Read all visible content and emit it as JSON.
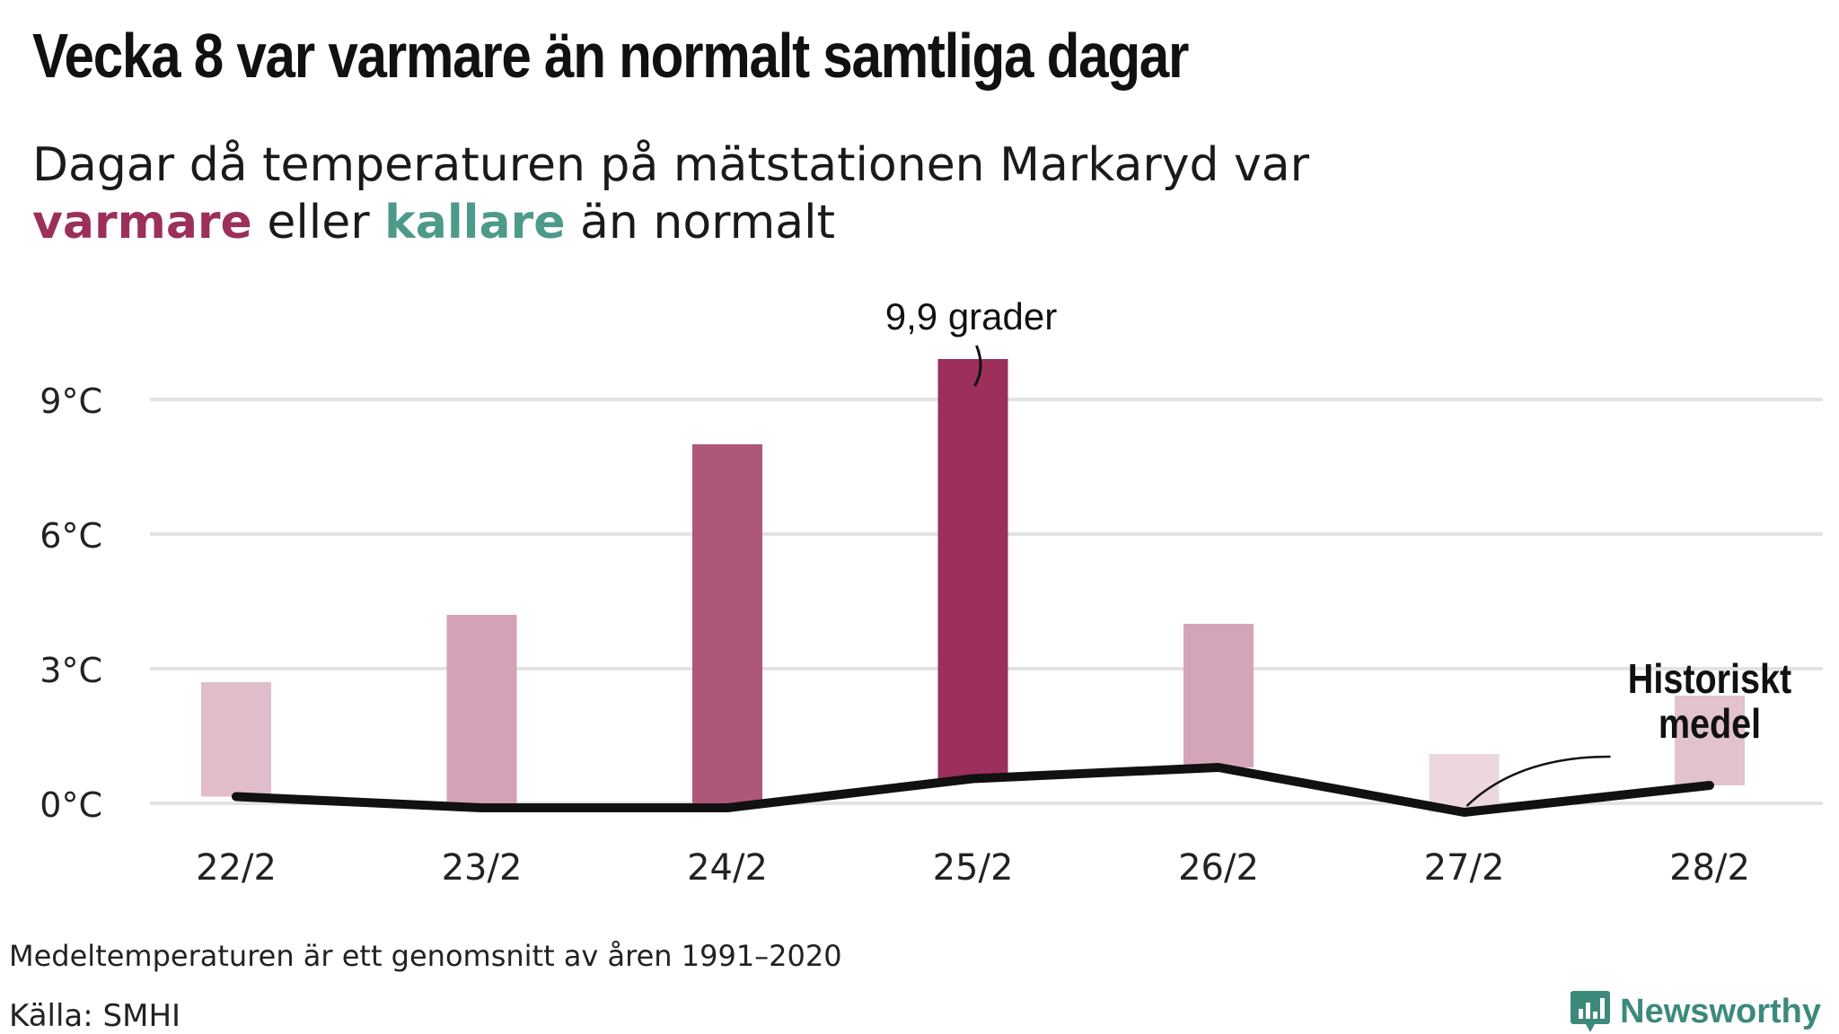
{
  "title": "Vecka 8 var varmare än normalt samtliga dagar",
  "subtitle": {
    "line1": "Dagar då temperaturen på mätstationen Markaryd var",
    "warm_word": "varmare",
    "middle": " eller ",
    "cold_word": "kallare",
    "end": " än normalt"
  },
  "colors": {
    "warm": "#9c2f5c",
    "cold": "#4d9a8a",
    "line": "#111111",
    "grid": "#e3e3e3"
  },
  "chart_data": {
    "type": "bar",
    "categories": [
      "22/2",
      "23/2",
      "24/2",
      "25/2",
      "26/2",
      "27/2",
      "28/2"
    ],
    "series": [
      {
        "values": [
          2.7,
          4.2,
          8.0,
          9.9,
          4.0,
          1.1,
          2.4
        ]
      },
      {
        "name": "Historiskt medel",
        "type": "line",
        "values": [
          0.15,
          -0.1,
          -0.1,
          0.55,
          0.8,
          -0.2,
          0.4
        ]
      }
    ],
    "yticks": [
      0,
      3,
      6,
      9
    ],
    "ytick_labels": [
      "0°C",
      "3°C",
      "6°C",
      "9°C"
    ],
    "ylim": [
      -0.5,
      11.2
    ],
    "grid": true,
    "annotations": [
      {
        "category": "25/2",
        "text": "9,9 grader"
      },
      {
        "category": "28/2",
        "text_line1": "Historiskt",
        "text_line2": "medel"
      }
    ]
  },
  "footnote": "Medeltemperaturen är ett genomsnitt av åren 1991–2020",
  "source": "Källa: SMHI",
  "brand": {
    "name": "Newsworthy",
    "icon": "newsworthy-chart-icon"
  }
}
